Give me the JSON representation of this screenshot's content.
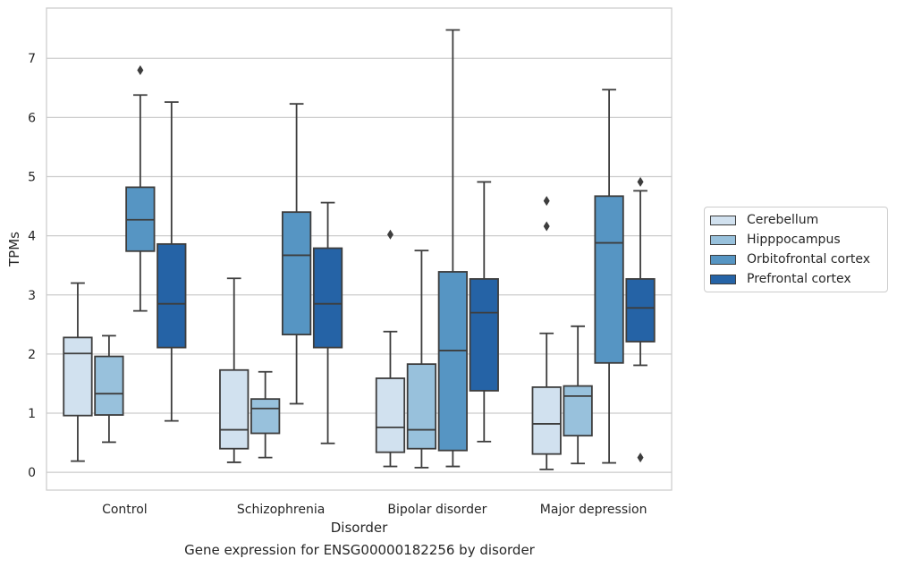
{
  "caption": "Gene expression for ENSG00000182256 by disorder",
  "chart_data": {
    "type": "box",
    "xlabel": "Disorder",
    "ylabel": "TPMs",
    "ylim": [
      -0.3,
      7.85
    ],
    "yticks": [
      0,
      1,
      2,
      3,
      4,
      5,
      6,
      7
    ],
    "grid": "horizontal",
    "legend_position": "right",
    "categories": [
      "Control",
      "Schizophrenia",
      "Bipolar disorder",
      "Major depression"
    ],
    "series": [
      {
        "name": "Cerebellum",
        "color": "#d1e1ef",
        "boxes": [
          {
            "whisker_low": 0.19,
            "q1": 0.96,
            "median": 2.01,
            "q3": 2.28,
            "whisker_high": 3.2,
            "outliers": []
          },
          {
            "whisker_low": 0.17,
            "q1": 0.4,
            "median": 0.72,
            "q3": 1.73,
            "whisker_high": 3.28,
            "outliers": []
          },
          {
            "whisker_low": 0.1,
            "q1": 0.34,
            "median": 0.76,
            "q3": 1.59,
            "whisker_high": 2.38,
            "outliers": [
              4.02
            ]
          },
          {
            "whisker_low": 0.05,
            "q1": 0.31,
            "median": 0.82,
            "q3": 1.44,
            "whisker_high": 2.35,
            "outliers": [
              4.16,
              4.59
            ]
          }
        ]
      },
      {
        "name": "Hipppocampus",
        "color": "#98c1dc",
        "boxes": [
          {
            "whisker_low": 0.51,
            "q1": 0.97,
            "median": 1.33,
            "q3": 1.96,
            "whisker_high": 2.31,
            "outliers": []
          },
          {
            "whisker_low": 0.25,
            "q1": 0.66,
            "median": 1.08,
            "q3": 1.24,
            "whisker_high": 1.7,
            "outliers": []
          },
          {
            "whisker_low": 0.08,
            "q1": 0.4,
            "median": 0.72,
            "q3": 1.83,
            "whisker_high": 3.75,
            "outliers": []
          },
          {
            "whisker_low": 0.15,
            "q1": 0.62,
            "median": 1.29,
            "q3": 1.46,
            "whisker_high": 2.47,
            "outliers": []
          }
        ]
      },
      {
        "name": "Orbitofrontal cortex",
        "color": "#5695c3",
        "boxes": [
          {
            "whisker_low": 2.73,
            "q1": 3.74,
            "median": 4.27,
            "q3": 4.82,
            "whisker_high": 6.38,
            "outliers": [
              6.8
            ]
          },
          {
            "whisker_low": 1.16,
            "q1": 2.33,
            "median": 3.67,
            "q3": 4.4,
            "whisker_high": 6.23,
            "outliers": []
          },
          {
            "whisker_low": 0.1,
            "q1": 0.37,
            "median": 2.06,
            "q3": 3.39,
            "whisker_high": 7.48,
            "outliers": []
          },
          {
            "whisker_low": 0.16,
            "q1": 1.85,
            "median": 3.88,
            "q3": 4.67,
            "whisker_high": 6.47,
            "outliers": []
          }
        ]
      },
      {
        "name": "Prefrontal cortex",
        "color": "#2563a6",
        "boxes": [
          {
            "whisker_low": 0.87,
            "q1": 2.11,
            "median": 2.85,
            "q3": 3.86,
            "whisker_high": 6.26,
            "outliers": []
          },
          {
            "whisker_low": 0.49,
            "q1": 2.11,
            "median": 2.85,
            "q3": 3.79,
            "whisker_high": 4.56,
            "outliers": []
          },
          {
            "whisker_low": 0.52,
            "q1": 1.38,
            "median": 2.7,
            "q3": 3.27,
            "whisker_high": 4.91,
            "outliers": []
          },
          {
            "whisker_low": 1.81,
            "q1": 2.21,
            "median": 2.78,
            "q3": 3.27,
            "whisker_high": 4.76,
            "outliers": [
              0.25,
              4.91
            ]
          }
        ]
      }
    ]
  }
}
